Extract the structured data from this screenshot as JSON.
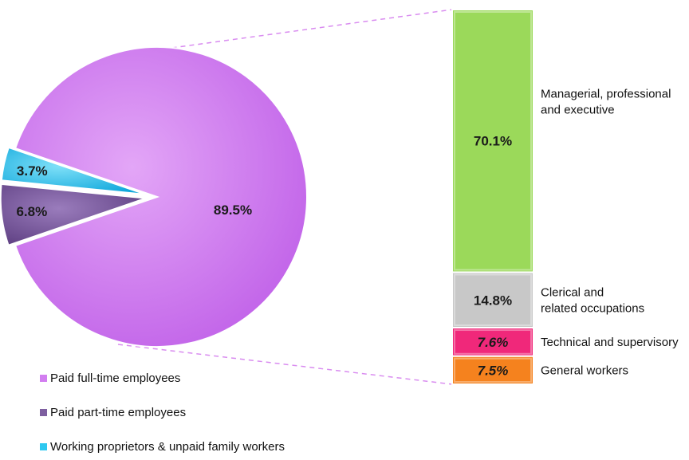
{
  "chart_data": [
    {
      "type": "pie",
      "slices": [
        {
          "label": "Paid full-time employees",
          "value": 89.5,
          "display": "89.5%",
          "color": "#d27ef0",
          "exploded": false
        },
        {
          "label": "Paid part-time employees",
          "value": 6.8,
          "display": "6.8%",
          "color": "#7e5fa0",
          "exploded": true
        },
        {
          "label": "Working proprietors & unpaid family workers",
          "value": 3.7,
          "display": "3.7%",
          "color": "#2ec8f0",
          "exploded": true
        }
      ],
      "legend_position": "bottom-left"
    },
    {
      "type": "bar",
      "orientation": "stacked-vertical",
      "breakdown_of": "Paid full-time employees",
      "segments": [
        {
          "label": "Managerial, professional and executive",
          "label_lines": [
            "Managerial, professional",
            "and executive"
          ],
          "value": 70.1,
          "display": "70.1%",
          "color": "#9bd95a",
          "label_italic": false
        },
        {
          "label": "Clerical and related occupations",
          "label_lines": [
            "Clerical and",
            "related occupations"
          ],
          "value": 14.8,
          "display": "14.8%",
          "color": "#c8c8c8",
          "label_italic": false
        },
        {
          "label": "Technical and supervisory",
          "label_lines": [
            "Technical and supervisory"
          ],
          "value": 7.6,
          "display": "7.6%",
          "color": "#f0287a",
          "label_italic": true
        },
        {
          "label": "General workers",
          "label_lines": [
            "General workers"
          ],
          "value": 7.5,
          "display": "7.5%",
          "color": "#f5821e",
          "label_italic": true
        }
      ]
    }
  ]
}
